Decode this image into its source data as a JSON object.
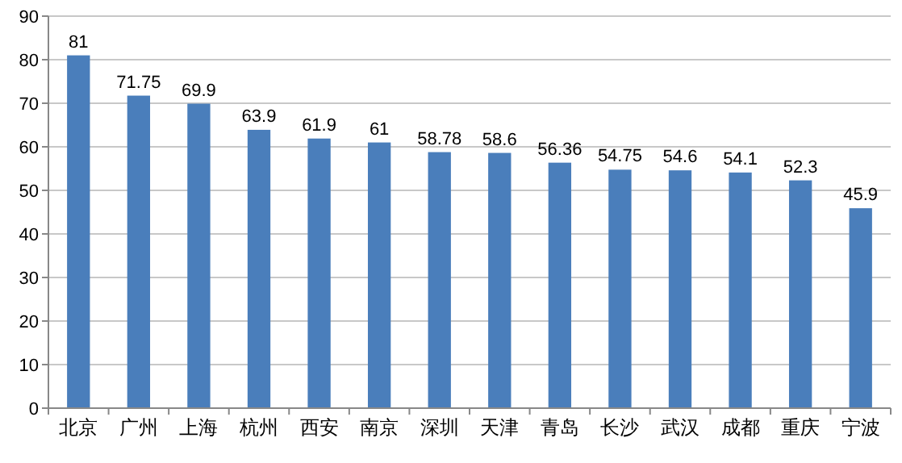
{
  "chart_data": {
    "type": "bar",
    "categories": [
      "北京",
      "广州",
      "上海",
      "杭州",
      "西安",
      "南京",
      "深圳",
      "天津",
      "青岛",
      "长沙",
      "武汉",
      "成都",
      "重庆",
      "宁波"
    ],
    "values": [
      81,
      71.75,
      69.9,
      63.9,
      61.9,
      61,
      58.78,
      58.6,
      56.36,
      54.75,
      54.6,
      54.1,
      52.3,
      45.9
    ],
    "color": "#4a7ebb",
    "ylim": [
      0,
      90
    ],
    "yticks": [
      0,
      10,
      20,
      30,
      40,
      50,
      60,
      70,
      80,
      90
    ],
    "grid": "y",
    "data_labels": true
  }
}
